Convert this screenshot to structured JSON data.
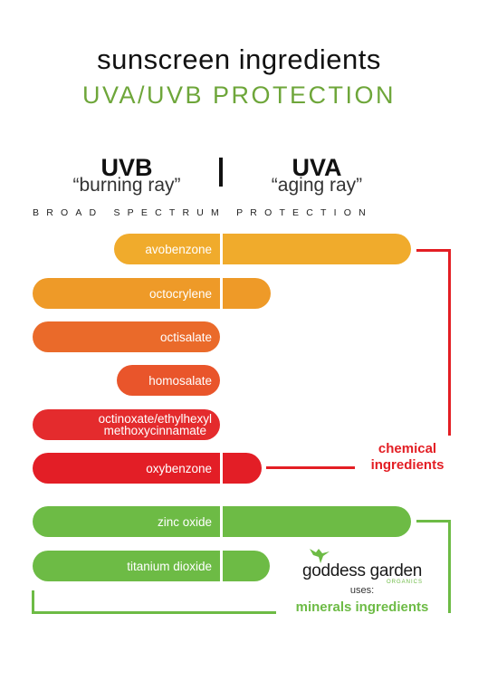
{
  "title": "sunscreen ingredients",
  "subtitle": "UVA/UVB PROTECTION",
  "uvb": {
    "label": "UVB",
    "sub": "“burning ray”"
  },
  "uva": {
    "label": "UVA",
    "sub": "“aging ray”"
  },
  "broad_label": "BROAD SPECTRUM PROTECTION",
  "ingredients": [
    {
      "label": "avobenzone",
      "color": "#f0ab2c"
    },
    {
      "label": "octocrylene",
      "color": "#ee9a28"
    },
    {
      "label": "octisalate",
      "color": "#ea6a2a"
    },
    {
      "label": "homosalate",
      "color": "#e9552b"
    },
    {
      "label": "octinoxate/ethylhexyl\nmethoxycinnamate",
      "color": "#e42b2d"
    },
    {
      "label": "oxybenzone",
      "color": "#e31e26"
    },
    {
      "label": "zinc oxide",
      "color": "#6dbb45"
    },
    {
      "label": "titanium dioxide",
      "color": "#6dbb45"
    }
  ],
  "chemical_label": "chemical ingredients",
  "mineral_label": "minerals ingredients",
  "brand": {
    "name": "goddess garden",
    "sub": "ORGANICS",
    "uses": "uses:"
  },
  "colors": {
    "chemical": "#e31e24",
    "mineral": "#6dbb45",
    "subtitle": "#6ea63a"
  }
}
